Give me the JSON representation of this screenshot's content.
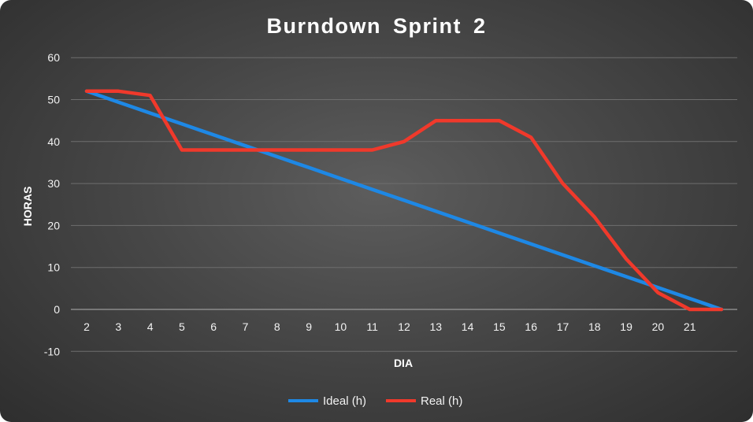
{
  "chart_data": {
    "type": "line",
    "title": "Burndown  Sprint  2",
    "xlabel": "DIA",
    "ylabel": "HORAS",
    "x": [
      2,
      3,
      4,
      5,
      6,
      7,
      8,
      9,
      10,
      11,
      12,
      13,
      14,
      15,
      16,
      17,
      18,
      19,
      20,
      21,
      22
    ],
    "x_tick_labels": [
      "2",
      "3",
      "4",
      "5",
      "6",
      "7",
      "8",
      "9",
      "10",
      "11",
      "12",
      "13",
      "14",
      "15",
      "16",
      "17",
      "18",
      "19",
      "20",
      "21"
    ],
    "y_ticks": [
      -10,
      0,
      10,
      20,
      30,
      40,
      50,
      60
    ],
    "ylim": [
      -10,
      60
    ],
    "grid": true,
    "legend_position": "bottom",
    "series": [
      {
        "name": "Ideal (h)",
        "color": "#1e88e5",
        "values": [
          52,
          49.4,
          46.8,
          44.2,
          41.6,
          39,
          36.4,
          33.8,
          31.2,
          28.6,
          26,
          23.4,
          20.8,
          18.2,
          15.6,
          13,
          10.4,
          7.8,
          5.2,
          2.6,
          0
        ]
      },
      {
        "name": "Real (h)",
        "color": "#f0392b",
        "values": [
          52,
          52,
          51,
          38,
          38,
          38,
          38,
          38,
          38,
          38,
          40,
          45,
          45,
          45,
          41,
          30,
          22,
          12,
          4,
          0,
          0
        ]
      }
    ]
  }
}
